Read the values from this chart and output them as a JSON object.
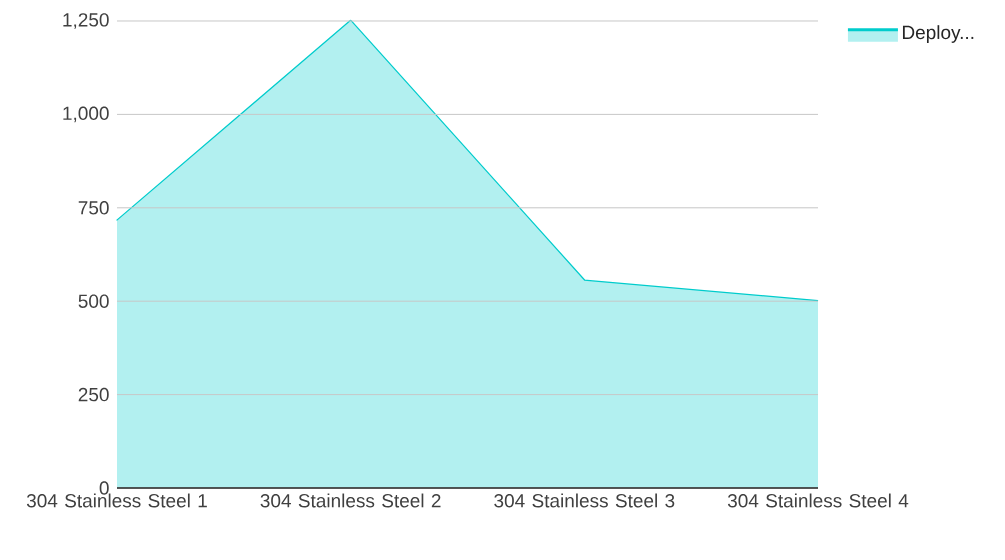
{
  "chart_data": {
    "type": "area",
    "categories": [
      "304 Stainless Steel 1",
      "304 Stainless Steel 2",
      "304 Stainless Steel 3",
      "304 Stainless Steel 4"
    ],
    "series": [
      {
        "name": "Deploy...",
        "color": "#00cccc",
        "values": [
          715,
          1250,
          555,
          500
        ]
      }
    ],
    "ylim": [
      0,
      1250
    ],
    "yticks": [
      0,
      250,
      500,
      750,
      {
        "value": 1000,
        "label": "1,000"
      },
      {
        "value": 1250,
        "label": "1,250"
      }
    ],
    "grid": "y",
    "legend": "top right"
  }
}
